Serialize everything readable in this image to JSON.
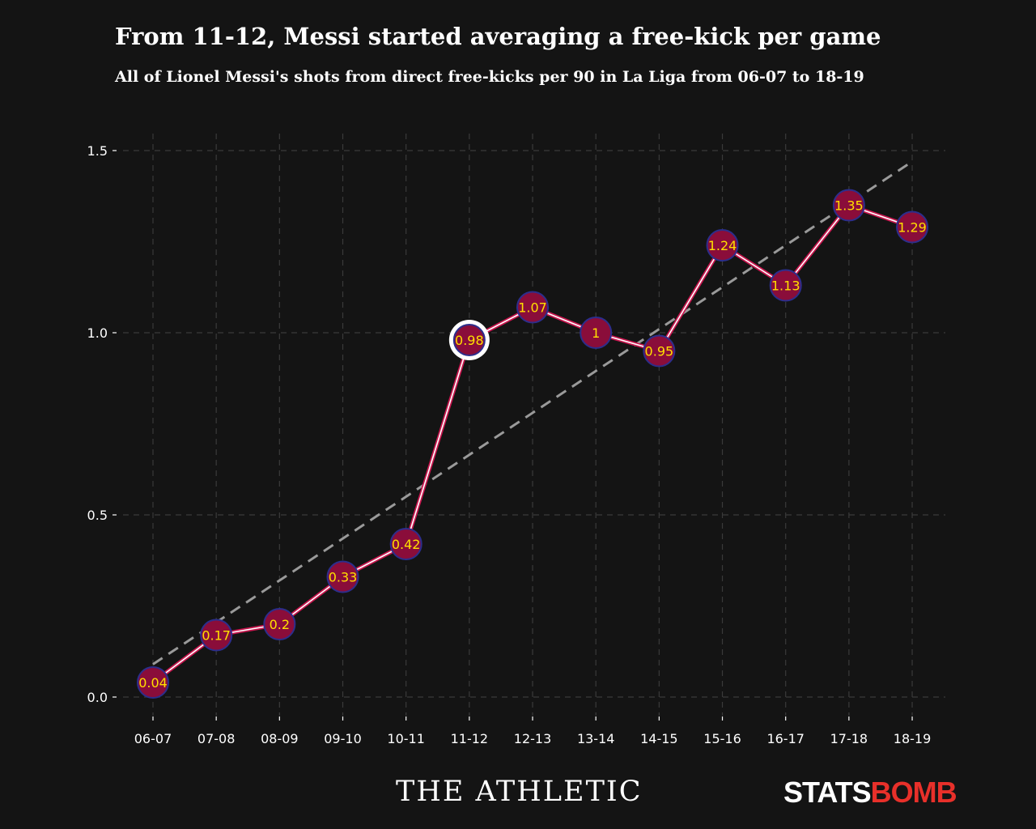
{
  "header": {
    "title": "From 11-12, Messi started averaging a free-kick per game",
    "subtitle": "All of Lionel Messi's shots from direct free-kicks per 90 in La Liga from 06-07 to 18-19"
  },
  "footer": {
    "brand_left": "THE ATHLETIC",
    "brand_right_part1": "STATS",
    "brand_right_part2": "BOMB"
  },
  "colors": {
    "background": "#141414",
    "line_outer": "#c8174f",
    "line_inner": "#ffffff",
    "marker_fill": "#8a0d3a",
    "marker_stroke": "#2c2e8c",
    "label": "#ffe000",
    "trend": "#9a9a9a",
    "highlight_ring": "#ffffff"
  },
  "chart_data": {
    "type": "line",
    "categories": [
      "06-07",
      "07-08",
      "08-09",
      "09-10",
      "10-11",
      "11-12",
      "12-13",
      "13-14",
      "14-15",
      "15-16",
      "16-17",
      "17-18",
      "18-19"
    ],
    "values": [
      0.04,
      0.17,
      0.2,
      0.33,
      0.42,
      0.98,
      1.07,
      1,
      0.95,
      1.24,
      1.13,
      1.35,
      1.29
    ],
    "value_labels": [
      "0.04",
      "0.17",
      "0.2",
      "0.33",
      "0.42",
      "0.98",
      "1.07",
      "1",
      "0.95",
      "1.24",
      "1.13",
      "1.35",
      "1.29"
    ],
    "highlight_category": "11-12",
    "trend_line": {
      "start": 0.09,
      "end": 1.47
    },
    "yticks": [
      "0.0",
      "0.5",
      "1.0",
      "1.5"
    ],
    "ylim": [
      0,
      1.5
    ],
    "grid": true
  }
}
